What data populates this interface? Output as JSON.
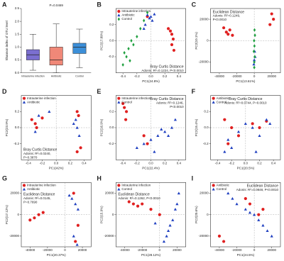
{
  "chart_data": [
    {
      "type": "box",
      "panel": "A",
      "title": "P=0.0469",
      "y_label": "Shannon index of OTU level",
      "categories": [
        "Intrauterine infection",
        "Antibiotic",
        "Control"
      ],
      "colors": [
        "#7b6fd0",
        "#f08878",
        "#3c8fd8"
      ],
      "min": [
        0.1,
        0.0,
        0.2
      ],
      "q1": [
        0.5,
        0.3,
        0.75
      ],
      "median": [
        0.7,
        0.5,
        1.0
      ],
      "q3": [
        0.9,
        1.0,
        1.15
      ],
      "max": [
        1.5,
        1.9,
        1.7
      ],
      "ylim": [
        0,
        2.5
      ],
      "yticks": [
        {
          "value": 0,
          "label": "0.0"
        },
        {
          "value": 0.5,
          "label": "0.5"
        },
        {
          "value": 1,
          "label": "1.0"
        },
        {
          "value": 1.5,
          "label": "1.5"
        },
        {
          "value": 2,
          "label": "2.0"
        },
        {
          "value": 2.5,
          "label": "2.5"
        }
      ]
    },
    {
      "type": "scatter",
      "panel": "B",
      "x_label": "PC1(24.8%)",
      "y_label": "PC2(17.89%)",
      "annotation": [
        "Bray Curtis Distance",
        "Adonis: R²=0.1224, P<0.0010"
      ],
      "legend": "upper left",
      "xlim": [
        -0.5,
        0.5
      ],
      "ylim": [
        -0.4,
        0.4
      ],
      "xticks": [
        -0.4,
        -0.2,
        {
          "value": 0,
          "label": "0.0"
        },
        0.2,
        0.4
      ],
      "yticks": [
        -0.2,
        {
          "value": 0,
          "label": "0.0"
        },
        0.2
      ],
      "series": [
        {
          "name": "Intrauterine infection",
          "color": "#e02020",
          "marker": "circle",
          "x": [
            0.28,
            0.3,
            0.32,
            0.3,
            0.25,
            -0.05,
            0.33
          ],
          "y": [
            0.12,
            0.08,
            0.02,
            -0.05,
            0.15,
            0.3,
            -0.12
          ]
        },
        {
          "name": "Antibiotic",
          "color": "#2040c0",
          "marker": "triangle",
          "x": [
            -0.05,
            -0.02,
            0.0,
            0.02,
            -0.08,
            0.05,
            -0.1
          ],
          "y": [
            0.32,
            0.28,
            0.3,
            0.25,
            0.2,
            0.33,
            0.15
          ]
        },
        {
          "name": "Control",
          "color": "#20a040",
          "marker": "diamond",
          "x": [
            -0.4,
            -0.35,
            -0.3,
            -0.32,
            -0.25,
            -0.2,
            -0.15,
            -0.1,
            -0.05,
            -0.38,
            -0.28
          ],
          "y": [
            -0.3,
            -0.2,
            -0.25,
            -0.1,
            -0.05,
            0.05,
            0.15,
            0.25,
            0.35,
            -0.15,
            0.0
          ]
        }
      ]
    },
    {
      "type": "scatter",
      "panel": "C",
      "x_label": "PC1(13.61%)",
      "y_label": "PC2(10.1%)",
      "annotation": [
        "Euclidean Distance",
        "Adonis: R²=0.1249,",
        "P<0.0010"
      ],
      "xlim": [
        -50000,
        30000
      ],
      "ylim": [
        -30000,
        30000
      ],
      "xticks": [
        -40000,
        -20000,
        0,
        20000
      ],
      "yticks": [
        -20000,
        0,
        20000
      ],
      "series": [
        {
          "name": "Intrauterine infection",
          "color": "#e02020",
          "marker": "circle",
          "x": [
            -32000,
            -30000,
            -28000,
            -25000,
            -35000,
            20000,
            22000,
            18000
          ],
          "y": [
            8000,
            6000,
            10000,
            5000,
            12000,
            25000,
            20000,
            15000
          ]
        },
        {
          "name": "Antibiotic",
          "color": "#2040c0",
          "marker": "triangle",
          "x": [
            0,
            1000,
            -500,
            500
          ],
          "y": [
            -18000,
            -15000,
            -22000,
            -10000
          ]
        },
        {
          "name": "Control",
          "color": "#20a040",
          "marker": "diamond",
          "x": [
            0,
            500,
            -500,
            200,
            -200,
            800,
            0,
            300
          ],
          "y": [
            -20000,
            -15000,
            -10000,
            -5000,
            0,
            5000,
            -25000,
            10000
          ]
        }
      ]
    },
    {
      "type": "scatter",
      "panel": "D",
      "x_label": "PC1(42%)",
      "y_label": "PC2(23.9%)",
      "annotation": [
        "Bray Curtis Distance",
        "Adonis: R²=0.0240,",
        "P=0.3870"
      ],
      "legend": "upper left",
      "xlim": [
        -0.5,
        0.5
      ],
      "ylim": [
        -0.4,
        0.4
      ],
      "xticks": [
        -0.4,
        -0.2,
        {
          "value": 0,
          "label": "0.0"
        },
        0.2,
        0.4
      ],
      "yticks": [
        -0.2,
        {
          "value": 0,
          "label": "0.0"
        },
        0.2
      ],
      "series": [
        {
          "name": "Intrauterine infection",
          "color": "#e02020",
          "marker": "circle",
          "x": [
            -0.35,
            -0.3,
            -0.28,
            -0.2,
            0.3,
            0.32,
            0.35,
            0.3
          ],
          "y": [
            0.1,
            0.05,
            0.0,
            0.12,
            0.2,
            0.15,
            -0.25,
            -0.3
          ]
        },
        {
          "name": "Antibiotic",
          "color": "#2040c0",
          "marker": "triangle",
          "x": [
            -0.25,
            -0.1,
            0.28,
            0.3,
            0.33,
            0.25,
            -0.3
          ],
          "y": [
            0.15,
            0.2,
            0.1,
            0.0,
            -0.1,
            0.05,
            -0.05
          ]
        }
      ]
    },
    {
      "type": "scatter",
      "panel": "E",
      "x_label": "PC1(22.4%)",
      "y_label": "PC2(16.9%)",
      "annotation": [
        "Bray Curtis Distance",
        "Adonis: R²=0.1246,",
        "P<0.0010"
      ],
      "legend": "upper left",
      "xlim": [
        -0.5,
        0.5
      ],
      "ylim": [
        -0.4,
        0.4
      ],
      "xticks": [
        -0.4,
        -0.2,
        {
          "value": 0,
          "label": "0.0"
        },
        0.2,
        0.4
      ],
      "yticks": [
        -0.2,
        {
          "value": 0,
          "label": "0.0"
        },
        0.2
      ],
      "series": [
        {
          "name": "Intrauterine infection",
          "color": "#e02020",
          "marker": "circle",
          "x": [
            -0.4,
            -0.38,
            -0.35,
            -0.36,
            -0.1,
            -0.05
          ],
          "y": [
            0.3,
            0.25,
            0.2,
            0.1,
            -0.1,
            -0.2
          ]
        },
        {
          "name": "Control",
          "color": "#2040c0",
          "marker": "triangle",
          "x": [
            -0.2,
            -0.1,
            0,
            0.1,
            0.2,
            0.3,
            0.35,
            0.15,
            0.05,
            0.25
          ],
          "y": [
            -0.25,
            -0.2,
            -0.15,
            -0.1,
            -0.05,
            0.0,
            0.1,
            -0.02,
            -0.3,
            -0.1
          ]
        }
      ]
    },
    {
      "type": "scatter",
      "panel": "F",
      "x_label": "PC1(20.5%)",
      "y_label": "PC2(15.4%)",
      "annotation": [
        "Bray Curtis Distance",
        "Adonis: R²=0.0744, P=0.0010"
      ],
      "legend": "upper left",
      "xlim": [
        -0.5,
        0.5
      ],
      "ylim": [
        -0.4,
        0.4
      ],
      "xticks": [
        -0.4,
        -0.2,
        {
          "value": 0,
          "label": "0.0"
        },
        0.2,
        0.4
      ],
      "yticks": [
        -0.2,
        {
          "value": 0,
          "label": "0.0"
        },
        0.2
      ],
      "series": [
        {
          "name": "Antibiotic",
          "color": "#e02020",
          "marker": "circle",
          "x": [
            -0.3,
            -0.2,
            -0.1,
            0.1,
            0.2,
            -0.25,
            0.3
          ],
          "y": [
            0.1,
            0.0,
            -0.1,
            0.05,
            0.0,
            -0.2,
            0.08
          ]
        },
        {
          "name": "Control",
          "color": "#2040c0",
          "marker": "triangle",
          "x": [
            -0.3,
            -0.2,
            -0.1,
            0,
            0.1,
            0.2,
            0.3,
            0.35,
            -0.25,
            0.15
          ],
          "y": [
            -0.3,
            -0.25,
            -0.05,
            0.05,
            0.0,
            -0.1,
            0.1,
            0.05,
            -0.15,
            -0.3
          ]
        }
      ]
    },
    {
      "type": "scatter",
      "panel": "G",
      "x_label": "PC1(20.37%)",
      "y_label": "PC2(17.12%)",
      "annotation": [
        "Euclidean Distance",
        "Adonis: R²=0.0145,",
        "P=0.7690"
      ],
      "legend": "upper left",
      "xlim": [
        -50000,
        30000
      ],
      "ylim": [
        -30000,
        30000
      ],
      "xticks": [
        -40000,
        -20000,
        0,
        20000
      ],
      "yticks": [
        -20000,
        0,
        20000
      ],
      "series": [
        {
          "name": "Intrauterine infection",
          "color": "#e02020",
          "marker": "circle",
          "x": [
            -40000,
            -35000,
            -30000,
            -25000,
            10000,
            15000,
            12000
          ],
          "y": [
            -5000,
            -3000,
            0,
            2000,
            20000,
            -10000,
            -25000
          ]
        },
        {
          "name": "Antibiotic",
          "color": "#2040c0",
          "marker": "triangle",
          "x": [
            5000,
            8000,
            12000,
            15000,
            10000,
            14000
          ],
          "y": [
            18000,
            15000,
            10000,
            5000,
            -20000,
            -28000
          ]
        }
      ]
    },
    {
      "type": "scatter",
      "panel": "H",
      "x_label": "PC1(28.12%)",
      "y_label": "PC2(15.9%)",
      "annotation": [
        "Euclidean Distance",
        "Adonis: R²=0.1262, P<0.0010"
      ],
      "legend": "upper left",
      "xlim": [
        -50000,
        30000
      ],
      "ylim": [
        -30000,
        30000
      ],
      "xticks": [
        -40000,
        -20000,
        0,
        20000
      ],
      "yticks": [
        -20000,
        0,
        20000
      ],
      "series": [
        {
          "name": "Intrauterine infection",
          "color": "#e02020",
          "marker": "circle",
          "x": [
            -35000,
            -30000,
            -25000,
            -20000,
            -10000,
            0
          ],
          "y": [
            12000,
            10000,
            8000,
            10000,
            5000,
            0
          ]
        },
        {
          "name": "Control",
          "color": "#2040c0",
          "marker": "triangle",
          "x": [
            5000,
            8000,
            10000,
            12000,
            15000,
            18000,
            20000,
            22000,
            -5000
          ],
          "y": [
            -25000,
            -20000,
            -15000,
            -10000,
            -5000,
            5000,
            10000,
            20000,
            -8000
          ]
        }
      ]
    },
    {
      "type": "scatter",
      "panel": "I",
      "x_label": "PC1(24.5%)",
      "y_label": "PC2(20.6%)",
      "annotation": [
        "Euclidean Distance",
        "Adonis: R²=0.0848, P<0.0010"
      ],
      "legend": "upper left",
      "xlim": [
        -50000,
        30000
      ],
      "ylim": [
        -30000,
        30000
      ],
      "xticks": [
        -40000,
        -20000,
        0,
        20000
      ],
      "yticks": [
        -20000,
        0,
        20000
      ],
      "series": [
        {
          "name": "Antibiotic",
          "color": "#e02020",
          "marker": "circle",
          "x": [
            -40000,
            -35000,
            -10000,
            -5000,
            5000,
            10000
          ],
          "y": [
            -20000,
            -25000,
            15000,
            10000,
            0,
            5000
          ]
        },
        {
          "name": "Control",
          "color": "#2040c0",
          "marker": "triangle",
          "x": [
            -30000,
            -25000,
            -20000,
            -10000,
            -5000,
            0,
            5000,
            10000,
            15000,
            20000
          ],
          "y": [
            20000,
            15000,
            10000,
            5000,
            2000,
            0,
            -5000,
            -10000,
            -15000,
            -20000
          ]
        }
      ]
    }
  ]
}
